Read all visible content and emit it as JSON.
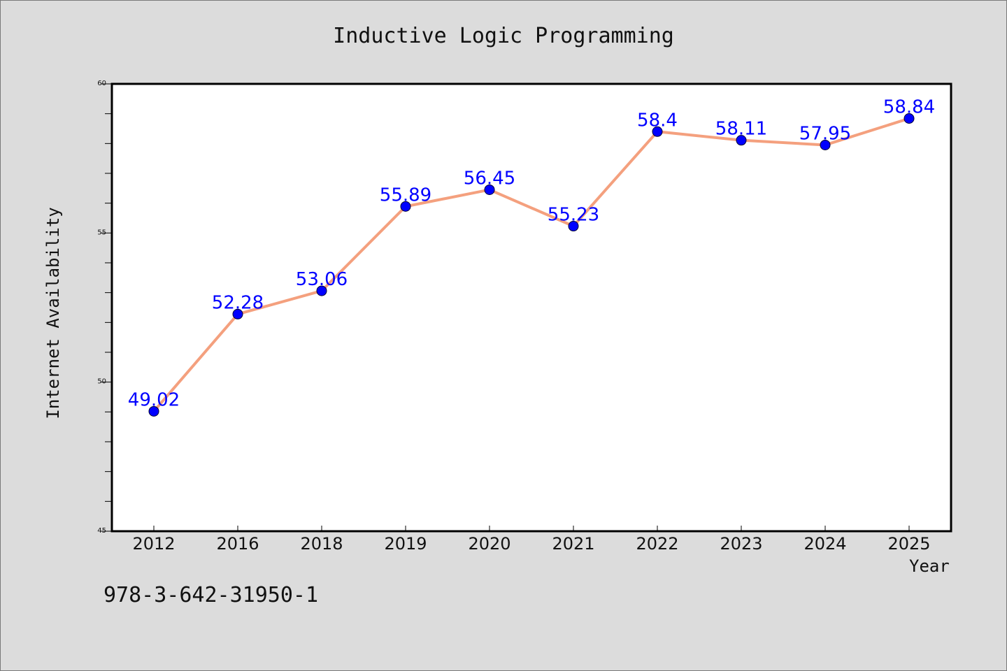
{
  "chart_data": {
    "type": "line",
    "title": "Inductive Logic Programming",
    "xlabel": "Year",
    "ylabel": "Internet Availability",
    "categories": [
      "2012",
      "2016",
      "2018",
      "2019",
      "2020",
      "2021",
      "2022",
      "2023",
      "2024",
      "2025"
    ],
    "values": [
      49.02,
      52.28,
      53.06,
      55.89,
      56.45,
      55.23,
      58.4,
      58.11,
      57.95,
      58.84
    ],
    "data_labels": [
      "49.02",
      "52.28",
      "53.06",
      "55.89",
      "56.45",
      "55.23",
      "58.4",
      "58.11",
      "57.95",
      "58.84"
    ],
    "ylim": [
      45,
      60
    ],
    "yticks": [
      45,
      50,
      55,
      60
    ],
    "grid": false,
    "line_color": "#f4a07e",
    "marker_color": "#0000ff",
    "label_color": "#0000ff"
  },
  "footer": {
    "code": "978-3-642-31950-1"
  }
}
